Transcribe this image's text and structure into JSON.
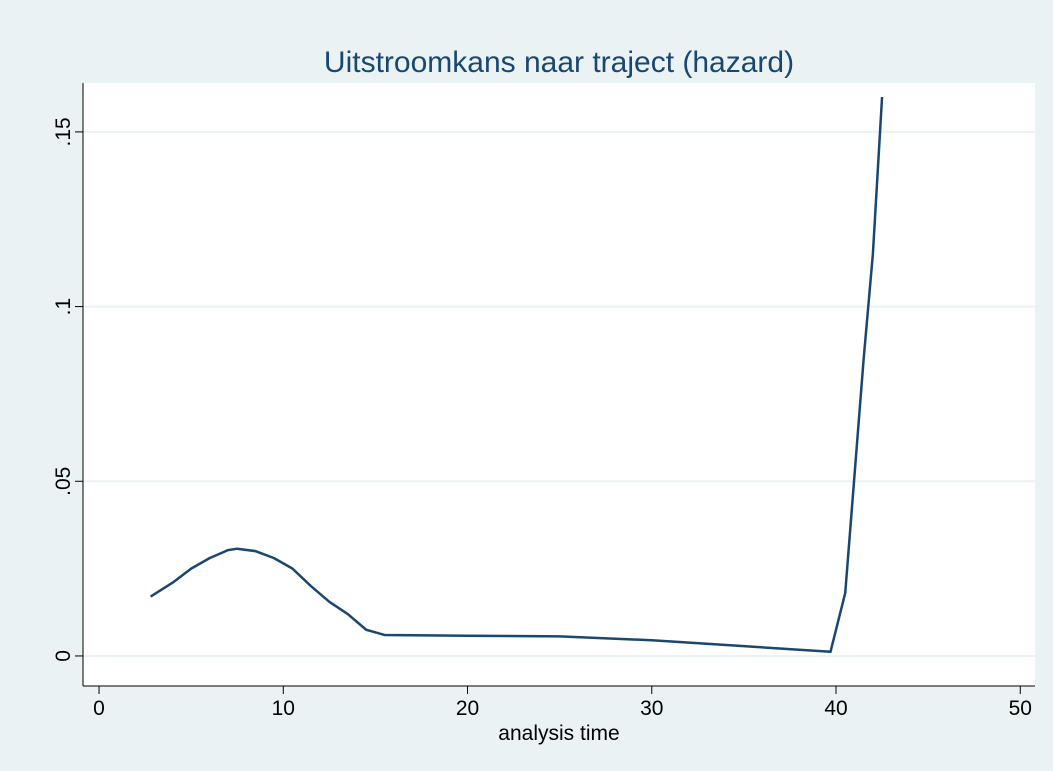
{
  "chart_data": {
    "type": "line",
    "title": "Uitstroomkans  naar traject (hazard)",
    "xlabel": "analysis time",
    "x": [
      2.8,
      4,
      5,
      6,
      7,
      7.5,
      8.5,
      9.5,
      10.5,
      11.5,
      12.5,
      13.5,
      14.5,
      15.5,
      20,
      25,
      30,
      35,
      39.7,
      40.5,
      41.5,
      42,
      42.5
    ],
    "series": [
      {
        "name": "hazard",
        "color": "#1a476f",
        "values": [
          0.017,
          0.021,
          0.025,
          0.028,
          0.0303,
          0.0307,
          0.03,
          0.028,
          0.025,
          0.02,
          0.0155,
          0.012,
          0.0075,
          0.006,
          0.0058,
          0.0056,
          0.0045,
          0.0028,
          0.0012,
          0.018,
          0.085,
          0.115,
          0.16
        ]
      }
    ],
    "xlim": [
      -0.87,
      50.8
    ],
    "xticks": [
      0,
      10,
      20,
      30,
      40,
      50
    ],
    "ylim": [
      -0.0086,
      0.164
    ],
    "yticks": [
      0,
      {
        "value": 0.05,
        "label": ".05"
      },
      {
        "value": 0.1,
        "label": ".1"
      },
      {
        "value": 0.15,
        "label": ".15"
      }
    ],
    "grid": true
  }
}
